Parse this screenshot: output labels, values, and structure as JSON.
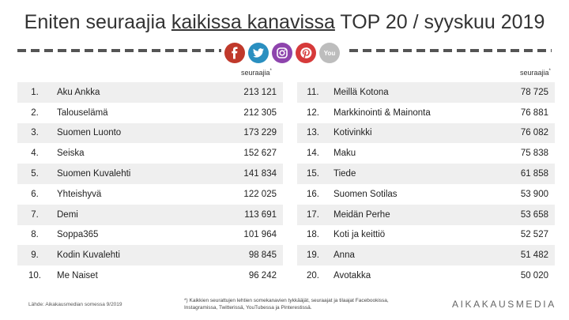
{
  "title": {
    "pre": "Eniten seuraajia ",
    "underlined": "kaikissa kanavissa",
    "post": " TOP 20 / syyskuu 2019"
  },
  "icons": [
    {
      "name": "facebook-icon",
      "color": "#c0392b"
    },
    {
      "name": "twitter-icon",
      "color": "#2a8fc0"
    },
    {
      "name": "instagram-icon",
      "color": "#8e44ad"
    },
    {
      "name": "pinterest-icon",
      "color": "#d63a3a"
    },
    {
      "name": "youtube-icon",
      "color": "#bdbdbd",
      "label": "You"
    }
  ],
  "header": {
    "label": "seuraajia",
    "mark": "*"
  },
  "left_rows": [
    {
      "rank": "1.",
      "name": "Aku Ankka",
      "value": "213 121"
    },
    {
      "rank": "2.",
      "name": "Talouselämä",
      "value": "212 305"
    },
    {
      "rank": "3.",
      "name": "Suomen Luonto",
      "value": "173 229"
    },
    {
      "rank": "4.",
      "name": "Seiska",
      "value": "152 627"
    },
    {
      "rank": "5.",
      "name": "Suomen Kuvalehti",
      "value": "141 834"
    },
    {
      "rank": "6.",
      "name": "Yhteishyvä",
      "value": "122 025"
    },
    {
      "rank": "7.",
      "name": "Demi",
      "value": "113 691"
    },
    {
      "rank": "8.",
      "name": "Soppa365",
      "value": "101 964"
    },
    {
      "rank": "9.",
      "name": "Kodin Kuvalehti",
      "value": "98 845"
    },
    {
      "rank": "10.",
      "name": "Me Naiset",
      "value": "96 242"
    }
  ],
  "right_rows": [
    {
      "rank": "11.",
      "name": "Meillä Kotona",
      "value": "78 725"
    },
    {
      "rank": "12.",
      "name": "Markkinointi & Mainonta",
      "value": "76 881"
    },
    {
      "rank": "13.",
      "name": "Kotivinkki",
      "value": "76 082"
    },
    {
      "rank": "14.",
      "name": "Maku",
      "value": "75 838"
    },
    {
      "rank": "15.",
      "name": "Tiede",
      "value": "61 858"
    },
    {
      "rank": "16.",
      "name": "Suomen Sotilas",
      "value": "53 900"
    },
    {
      "rank": "17.",
      "name": "Meidän Perhe",
      "value": "53 658"
    },
    {
      "rank": "18.",
      "name": "Koti ja keittiö",
      "value": "52 527"
    },
    {
      "rank": "19.",
      "name": "Anna",
      "value": "51 482"
    },
    {
      "rank": "20.",
      "name": "Avotakka",
      "value": "50 020"
    }
  ],
  "source": "Lähde: Aikakausmedian somessa 9/2019",
  "footnote": "*) Kaikkien seurattujen lehtien somekanavien tykkääjät, seuraajat ja tilaajat Facebookissa, Instagramissa, Twitterissä, YouTubessa ja Pinterestissä.",
  "logo": "AIKAKAUSMEDIA"
}
